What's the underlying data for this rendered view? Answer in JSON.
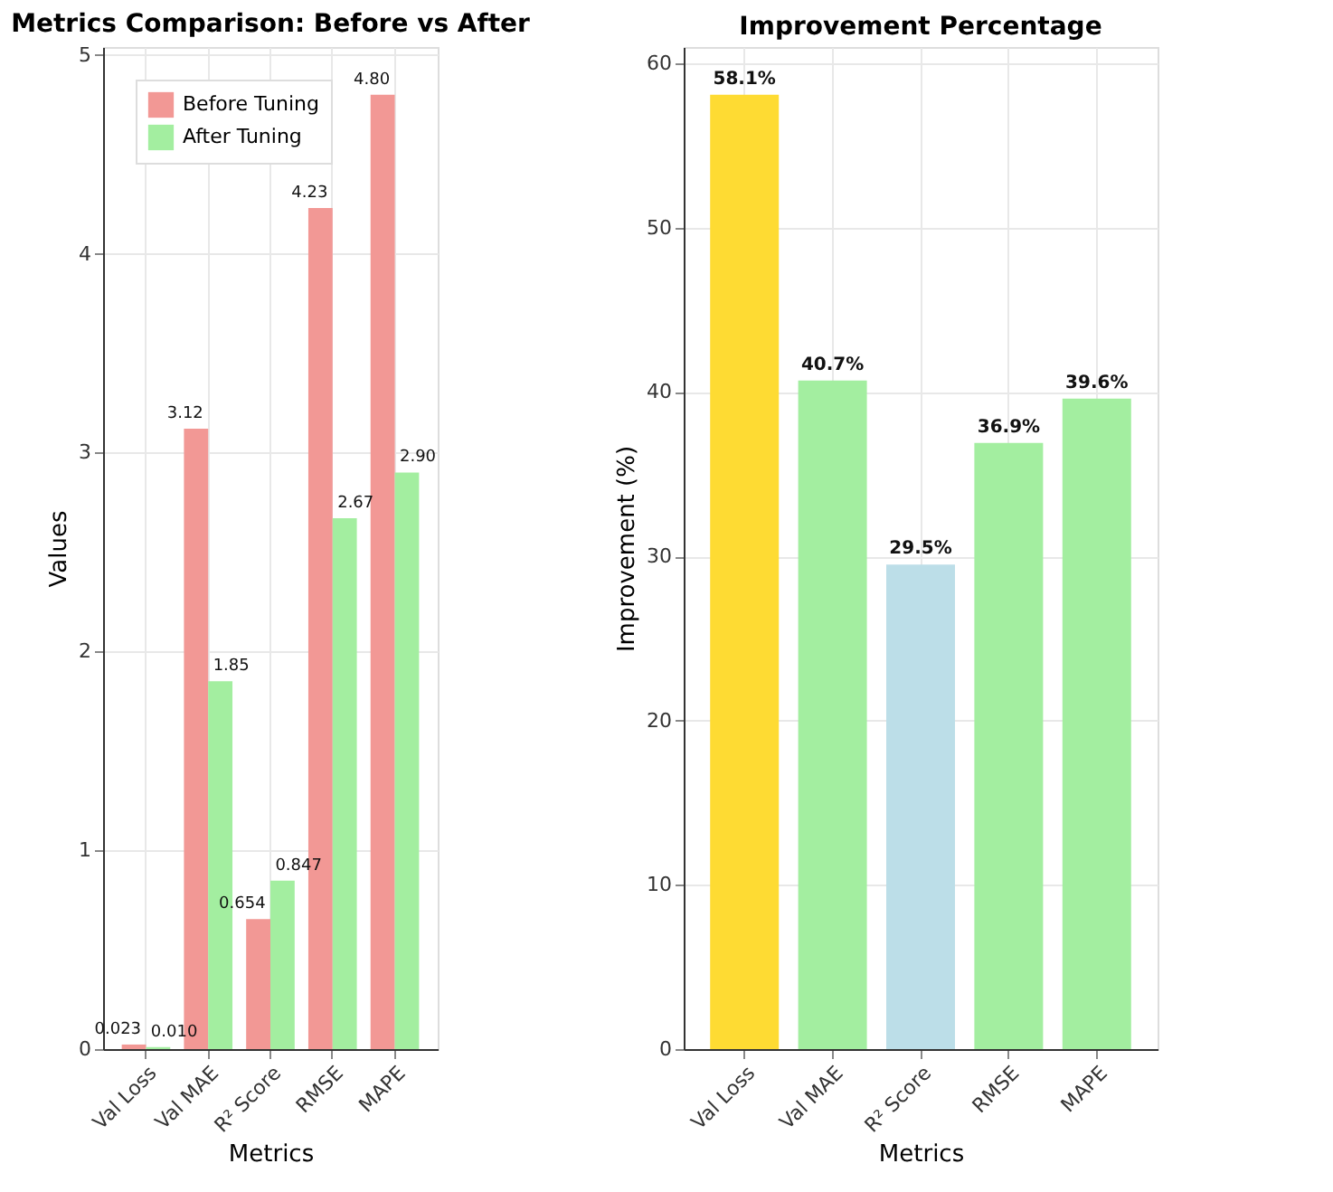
{
  "chart_data": [
    {
      "type": "bar",
      "title": "Metrics Comparison: Before vs After",
      "xlabel": "Metrics",
      "ylabel": "Values",
      "categories": [
        "Val Loss",
        "Val MAE",
        "R² Score",
        "RMSE",
        "MAPE"
      ],
      "ylim": [
        0,
        5.04
      ],
      "yticks": [
        0,
        1,
        2,
        3,
        4,
        5
      ],
      "grid": true,
      "legend": "top left",
      "series": [
        {
          "name": "Before Tuning",
          "color": "#f29895",
          "values": [
            0.023,
            3.12,
            0.654,
            4.23,
            4.8
          ],
          "value_labels": [
            "0.023",
            "3.12",
            "0.654",
            "4.23",
            "4.80"
          ]
        },
        {
          "name": "After Tuning",
          "color": "#a3eea0",
          "values": [
            0.01,
            1.85,
            0.847,
            2.67,
            2.9
          ],
          "value_labels": [
            "0.010",
            "1.85",
            "0.847",
            "2.67",
            "2.90"
          ]
        }
      ]
    },
    {
      "type": "bar",
      "title": "Improvement Percentage",
      "xlabel": "Metrics",
      "ylabel": "Improvement (%)",
      "categories": [
        "Val Loss",
        "Val MAE",
        "R² Score",
        "RMSE",
        "MAPE"
      ],
      "ylim": [
        0,
        61
      ],
      "yticks": [
        0,
        10,
        20,
        30,
        40,
        50,
        60
      ],
      "grid": true,
      "values": [
        58.1,
        40.7,
        29.5,
        36.9,
        39.6
      ],
      "colors": [
        "#fedb33",
        "#a3eea0",
        "#bcdee8",
        "#a3eea0",
        "#a3eea0"
      ],
      "value_labels": [
        "58.1%",
        "40.7%",
        "29.5%",
        "36.9%",
        "39.6%"
      ]
    }
  ]
}
